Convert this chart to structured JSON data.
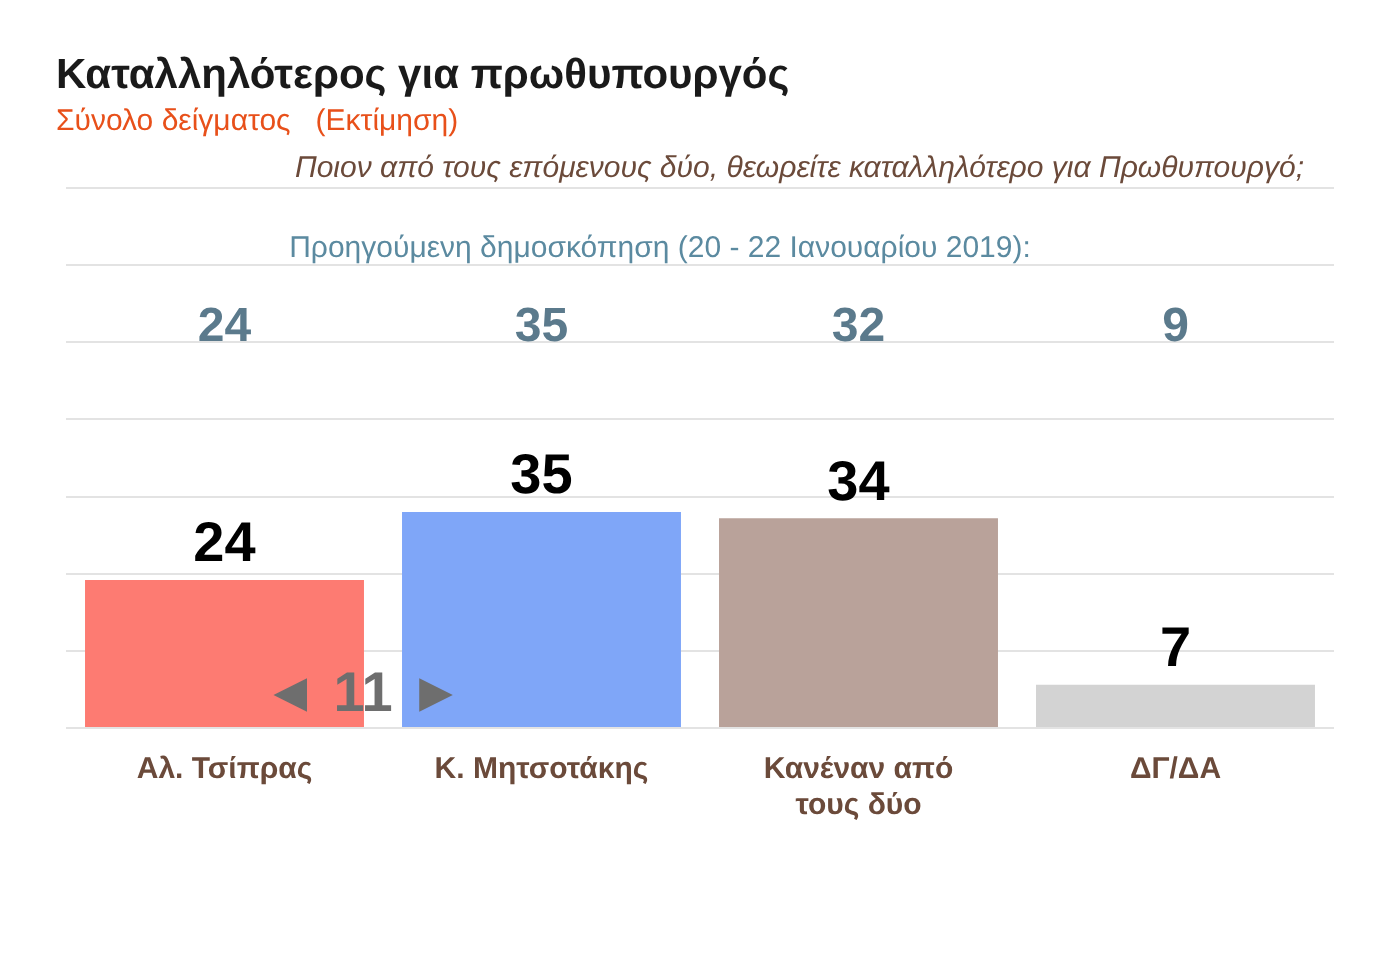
{
  "chart_data": {
    "type": "bar",
    "title": "Καταλληλότερος για πρωθυπουργός",
    "subtitle": "Σύνολο δείγματος   (Εκτίμηση)",
    "categories": [
      "Αλ. Τσίπρας",
      "Κ. Μητσοτάκης",
      "Κανέναν από τους δύο",
      "ΔΓ/ΔΑ"
    ],
    "values": [
      24,
      35,
      34,
      7
    ],
    "colors": [
      "#fd7b72",
      "#7fa6f8",
      "#b9a29a",
      "#d3d3d3"
    ],
    "ylim": [
      0,
      87.5
    ],
    "yticks": [
      {
        "value": 0,
        "label": null
      },
      {
        "value": 12.5,
        "label": null
      },
      {
        "value": 25,
        "label": null
      },
      {
        "value": 37.5,
        "label": null
      },
      {
        "value": 50,
        "label": null
      },
      {
        "value": 62.5,
        "label": null
      },
      {
        "value": 75,
        "label": null
      },
      {
        "value": 87.5,
        "label": null
      }
    ],
    "tick_labels": "x",
    "grid": "y",
    "legend": false,
    "data_labels": true,
    "annotations": [
      "Ποιον από τους επόμενους δύο, θεωρείτε καταλληλότερο για Πρωθυπουργό;",
      "Προηγούμενη δημοσκόπηση (20 - 22 Ιανουαρίου 2019):",
      "24",
      "35",
      "32",
      "9",
      "◄ 11 ►"
    ]
  }
}
